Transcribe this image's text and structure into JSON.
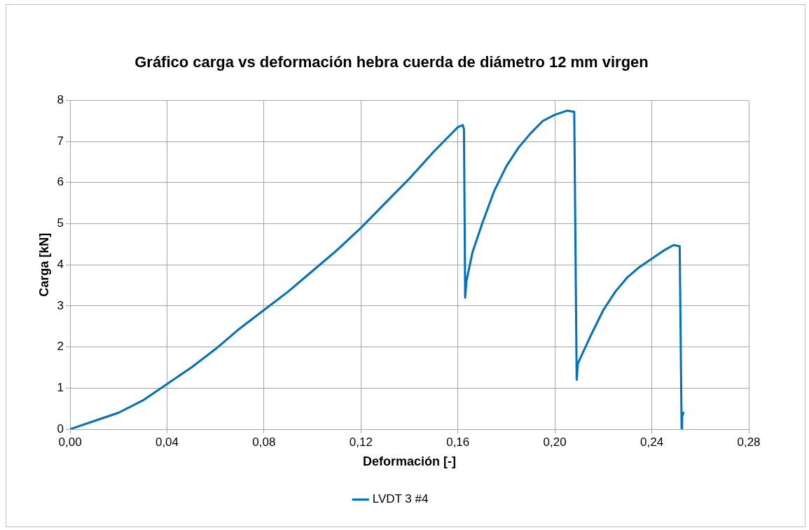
{
  "chart_data": {
    "type": "line",
    "title": "Gráfico carga vs deformación hebra cuerda de diámetro 12 mm virgen",
    "xlabel": "Deformación [-]",
    "ylabel": "Carga [kN]",
    "xlim": [
      0,
      0.28
    ],
    "xticks": [
      {
        "value": 0,
        "label": "0,00"
      },
      {
        "value": 0.04,
        "label": "0,04"
      },
      {
        "value": 0.08,
        "label": "0,08"
      },
      {
        "value": 0.12,
        "label": "0,12"
      },
      {
        "value": 0.16,
        "label": "0,16"
      },
      {
        "value": 0.2,
        "label": "0,20"
      },
      {
        "value": 0.24,
        "label": "0,24"
      },
      {
        "value": 0.28,
        "label": "0,28"
      }
    ],
    "ylim": [
      0,
      8
    ],
    "yticks": [
      0,
      1,
      2,
      3,
      4,
      5,
      6,
      7,
      8
    ],
    "grid": true,
    "legend": "bottom",
    "marker": "none",
    "line_style": "solid",
    "series": [
      {
        "name": "LVDT 3 #4",
        "color": "#0070c0",
        "x": [
          0,
          0.005,
          0.01,
          0.02,
          0.03,
          0.04,
          0.05,
          0.06,
          0.07,
          0.08,
          0.09,
          0.1,
          0.11,
          0.12,
          0.13,
          0.14,
          0.15,
          0.16,
          0.162,
          0.1625,
          0.163,
          0.1635,
          0.166,
          0.17,
          0.175,
          0.18,
          0.185,
          0.19,
          0.195,
          0.2,
          0.205,
          0.208,
          0.209,
          0.2095,
          0.215,
          0.22,
          0.225,
          0.23,
          0.235,
          0.24,
          0.245,
          0.249,
          0.2515,
          0.2523,
          0.2525,
          0.253
        ],
        "values": [
          0,
          0.1,
          0.2,
          0.4,
          0.7,
          1.1,
          1.5,
          1.95,
          2.45,
          2.9,
          3.35,
          3.85,
          4.35,
          4.9,
          5.5,
          6.1,
          6.75,
          7.35,
          7.4,
          7.3,
          3.2,
          3.6,
          4.3,
          5.0,
          5.8,
          6.4,
          6.85,
          7.2,
          7.5,
          7.65,
          7.75,
          7.72,
          1.2,
          1.6,
          2.3,
          2.9,
          3.35,
          3.7,
          3.95,
          4.15,
          4.35,
          4.48,
          4.45,
          0,
          0.3,
          0.4
        ]
      }
    ]
  }
}
